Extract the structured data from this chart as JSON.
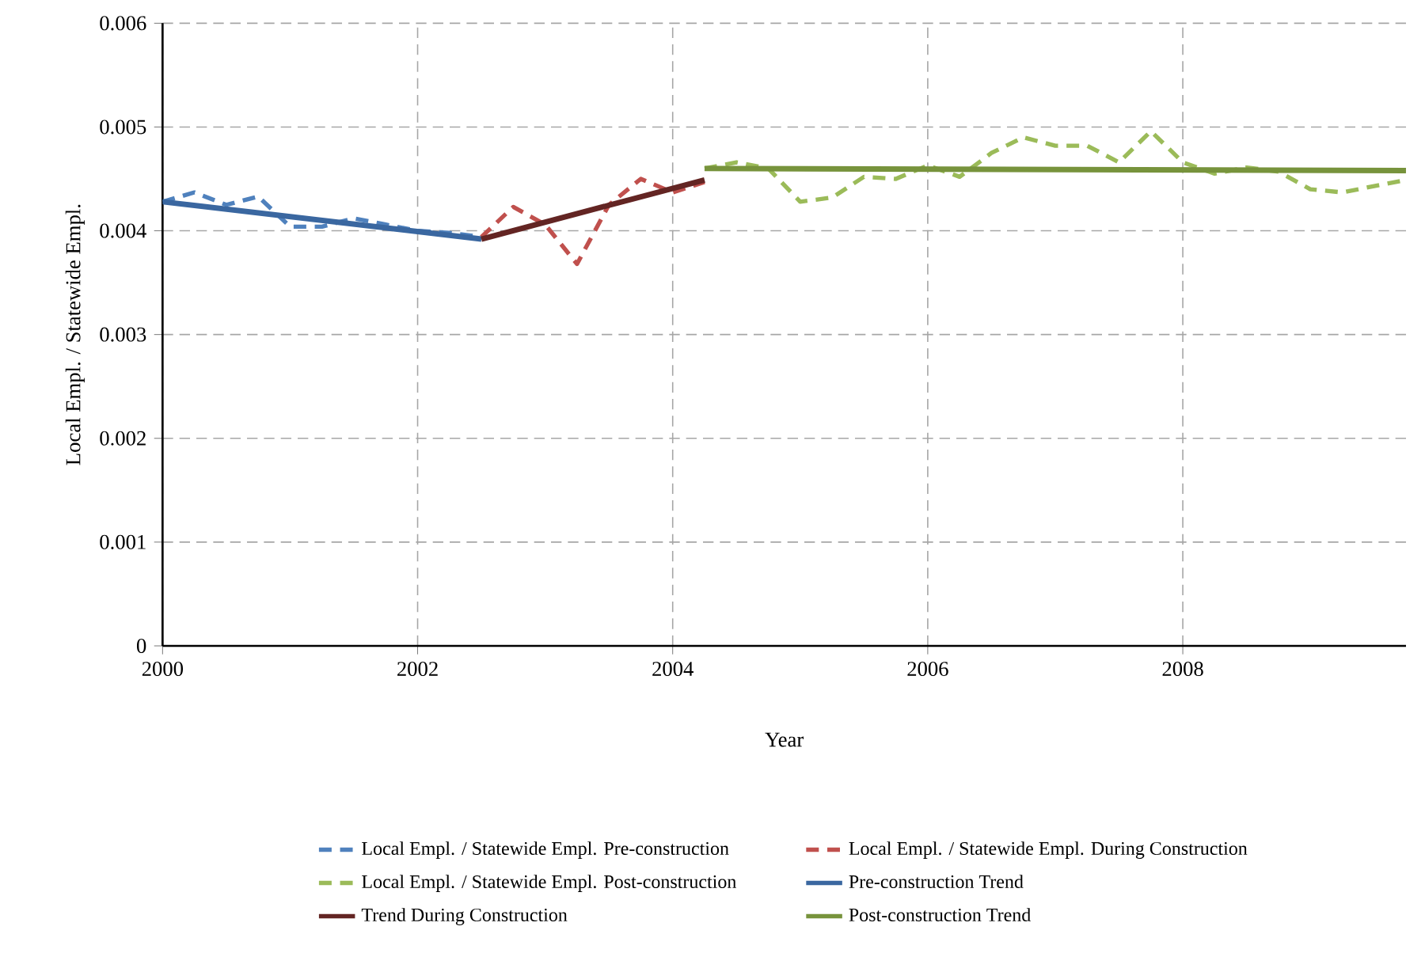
{
  "chart_data": {
    "type": "line",
    "xlabel": "Year",
    "ylabel": "Local Empl. / Statewide Empl.",
    "xlim": [
      2000,
      2009.75
    ],
    "ylim": [
      0,
      0.006
    ],
    "xticks": [
      2000,
      2002,
      2004,
      2006,
      2008
    ],
    "yticks": [
      0,
      0.001,
      0.002,
      0.003,
      0.004,
      0.005,
      0.006
    ],
    "grid": true,
    "legend": "bottom",
    "marker": "none",
    "series": [
      {
        "name": "Local Empl. / Statewide Empl. Pre-construction",
        "color": "#4f81bd",
        "line_style": "dashed",
        "x": [
          2000,
          2000.25,
          2000.5,
          2000.75,
          2001,
          2001.25,
          2001.5,
          2001.75,
          2002,
          2002.25,
          2002.5
        ],
        "values": [
          0.00428,
          0.00437,
          0.00425,
          0.00433,
          0.00404,
          0.00404,
          0.00412,
          0.00406,
          0.004,
          0.00398,
          0.00394
        ]
      },
      {
        "name": "Local Empl. / Statewide Empl. During Construction",
        "color": "#c0504d",
        "line_style": "dashed",
        "x": [
          2002.5,
          2002.75,
          2003,
          2003.25,
          2003.5,
          2003.75,
          2004,
          2004.25
        ],
        "values": [
          0.00394,
          0.00423,
          0.00406,
          0.00368,
          0.00425,
          0.0045,
          0.00437,
          0.00447
        ]
      },
      {
        "name": "Local Empl. / Statewide Empl. Post-construction",
        "color": "#9bbb59",
        "line_style": "dashed",
        "x": [
          2004.25,
          2004.5,
          2004.75,
          2005,
          2005.25,
          2005.5,
          2005.75,
          2006,
          2006.25,
          2006.5,
          2006.75,
          2007,
          2007.25,
          2007.5,
          2007.75,
          2008,
          2008.25,
          2008.5,
          2008.75,
          2009,
          2009.25,
          2009.5,
          2009.75
        ],
        "values": [
          0.0046,
          0.00466,
          0.0046,
          0.00428,
          0.00432,
          0.00452,
          0.0045,
          0.00463,
          0.00452,
          0.00475,
          0.0049,
          0.00482,
          0.00482,
          0.00466,
          0.00496,
          0.00466,
          0.00455,
          0.00461,
          0.00457,
          0.0044,
          0.00437,
          0.00443,
          0.00449
        ]
      },
      {
        "name": "Pre-construction Trend",
        "color": "#3a67a0",
        "line_style": "solid",
        "x": [
          2000,
          2002.5
        ],
        "values": [
          0.00428,
          0.00392
        ]
      },
      {
        "name": "Trend During Construction",
        "color": "#632523",
        "line_style": "solid",
        "x": [
          2002.5,
          2004.25
        ],
        "values": [
          0.00392,
          0.00449
        ]
      },
      {
        "name": "Post-construction Trend",
        "color": "#77933c",
        "line_style": "solid",
        "x": [
          2004.25,
          2009.75
        ],
        "values": [
          0.0046,
          0.00458
        ]
      }
    ]
  }
}
